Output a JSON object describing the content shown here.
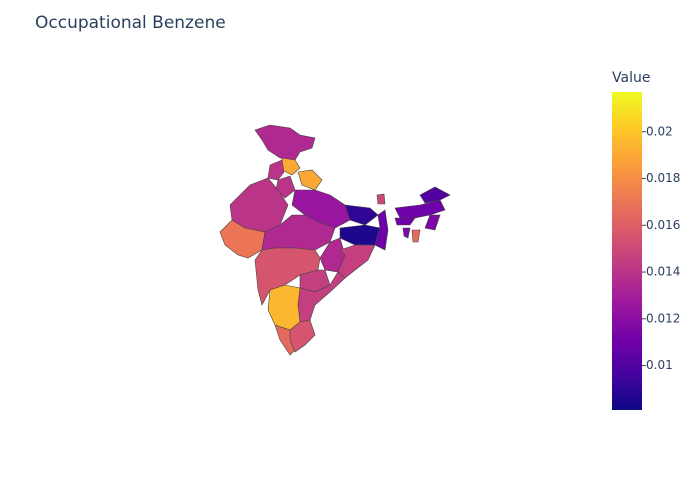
{
  "chart_data": {
    "type": "choropleth",
    "title": "Occupational Benzene",
    "colorbar": {
      "title": "Value",
      "lim": [
        0.0081,
        0.0217
      ],
      "ticks": [
        0.01,
        0.012,
        0.014,
        0.016,
        0.018,
        0.02
      ]
    },
    "colorscale": [
      "#0d0887",
      "#46039f",
      "#7201a8",
      "#9c179e",
      "#bd3786",
      "#d8576b",
      "#ed7953",
      "#fb9f3a",
      "#fdca26",
      "#f0f921"
    ],
    "values": [
      0.0135,
      0.019,
      0.014,
      0.019,
      0.014,
      0.014,
      0.0125,
      0.009,
      0.0085,
      0.011,
      0.017,
      0.0135,
      0.0135,
      0.0145,
      0.0155,
      0.0145,
      0.0145,
      0.0195,
      0.0165,
      0.0155,
      0.015,
      0.011,
      0.01,
      0.011,
      0.0115,
      0.0165,
      0.0115
    ]
  }
}
